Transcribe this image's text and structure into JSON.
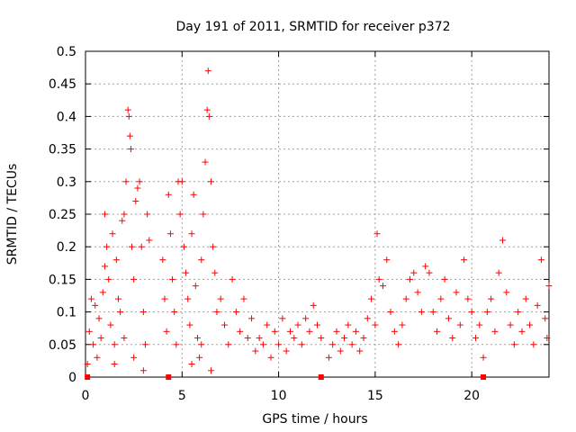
{
  "chart_data": {
    "type": "scatter",
    "title": "Day 191 of 2011, SRMTID for receiver p372",
    "xlabel": "GPS time / hours",
    "ylabel": "SRMTID / TECUs",
    "xlim": [
      0,
      24
    ],
    "ylim": [
      0,
      0.5
    ],
    "xticks": [
      0,
      5,
      10,
      15,
      20
    ],
    "yticks": [
      0,
      0.05,
      0.1,
      0.15,
      0.2,
      0.25,
      0.3,
      0.35,
      0.4,
      0.45,
      0.5
    ],
    "grid": true,
    "marker": "plus",
    "color": "#ff0000",
    "series": [
      {
        "values": [
          [
            0.1,
            0.02
          ],
          [
            0.2,
            0.07
          ],
          [
            0.3,
            0.12
          ],
          [
            0.4,
            0.05
          ],
          [
            0.5,
            0.11
          ],
          [
            0.6,
            0.03
          ],
          [
            0.7,
            0.09
          ],
          [
            0.8,
            0.06
          ],
          [
            0.9,
            0.13
          ],
          [
            1.0,
            0.17
          ],
          [
            1.0,
            0.25
          ],
          [
            1.1,
            0.2
          ],
          [
            1.2,
            0.15
          ],
          [
            1.3,
            0.08
          ],
          [
            1.4,
            0.22
          ],
          [
            1.5,
            0.05
          ],
          [
            1.6,
            0.18
          ],
          [
            1.7,
            0.12
          ],
          [
            1.8,
            0.1
          ],
          [
            1.9,
            0.24
          ],
          [
            2.0,
            0.25
          ],
          [
            2.1,
            0.3
          ],
          [
            2.2,
            0.41
          ],
          [
            2.25,
            0.4
          ],
          [
            2.3,
            0.37
          ],
          [
            2.35,
            0.35
          ],
          [
            2.4,
            0.2
          ],
          [
            2.5,
            0.15
          ],
          [
            2.6,
            0.27
          ],
          [
            2.7,
            0.29
          ],
          [
            2.8,
            0.3
          ],
          [
            2.9,
            0.2
          ],
          [
            3.0,
            0.1
          ],
          [
            3.1,
            0.05
          ],
          [
            3.2,
            0.25
          ],
          [
            3.3,
            0.21
          ],
          [
            1.5,
            0.02
          ],
          [
            2.0,
            0.06
          ],
          [
            2.5,
            0.03
          ],
          [
            3.0,
            0.01
          ],
          [
            4.0,
            0.18
          ],
          [
            4.1,
            0.12
          ],
          [
            4.2,
            0.07
          ],
          [
            4.3,
            0.28
          ],
          [
            4.4,
            0.22
          ],
          [
            4.5,
            0.15
          ],
          [
            4.6,
            0.1
          ],
          [
            4.7,
            0.05
          ],
          [
            4.8,
            0.3
          ],
          [
            4.9,
            0.25
          ],
          [
            5.0,
            0.3
          ],
          [
            5.1,
            0.2
          ],
          [
            5.2,
            0.16
          ],
          [
            5.3,
            0.12
          ],
          [
            5.4,
            0.08
          ],
          [
            5.5,
            0.22
          ],
          [
            5.6,
            0.28
          ],
          [
            5.7,
            0.14
          ],
          [
            5.8,
            0.06
          ],
          [
            5.9,
            0.03
          ],
          [
            6.0,
            0.18
          ],
          [
            6.1,
            0.25
          ],
          [
            6.2,
            0.33
          ],
          [
            6.3,
            0.41
          ],
          [
            6.35,
            0.47
          ],
          [
            6.4,
            0.4
          ],
          [
            6.5,
            0.3
          ],
          [
            6.6,
            0.2
          ],
          [
            6.7,
            0.16
          ],
          [
            6.8,
            0.1
          ],
          [
            5.5,
            0.02
          ],
          [
            6.0,
            0.05
          ],
          [
            6.5,
            0.01
          ],
          [
            7.0,
            0.12
          ],
          [
            7.2,
            0.08
          ],
          [
            7.4,
            0.05
          ],
          [
            7.6,
            0.15
          ],
          [
            7.8,
            0.1
          ],
          [
            8.0,
            0.07
          ],
          [
            8.2,
            0.12
          ],
          [
            8.4,
            0.06
          ],
          [
            8.6,
            0.09
          ],
          [
            8.8,
            0.04
          ],
          [
            9.0,
            0.06
          ],
          [
            9.2,
            0.05
          ],
          [
            9.4,
            0.08
          ],
          [
            9.6,
            0.03
          ],
          [
            9.8,
            0.07
          ],
          [
            10.0,
            0.05
          ],
          [
            10.2,
            0.09
          ],
          [
            10.4,
            0.04
          ],
          [
            10.6,
            0.07
          ],
          [
            10.8,
            0.06
          ],
          [
            11.0,
            0.08
          ],
          [
            11.2,
            0.05
          ],
          [
            11.4,
            0.09
          ],
          [
            11.6,
            0.07
          ],
          [
            11.8,
            0.11
          ],
          [
            12.0,
            0.08
          ],
          [
            12.2,
            0.06
          ],
          [
            12.6,
            0.03
          ],
          [
            12.8,
            0.05
          ],
          [
            13.0,
            0.07
          ],
          [
            13.2,
            0.04
          ],
          [
            13.4,
            0.06
          ],
          [
            13.6,
            0.08
          ],
          [
            13.8,
            0.05
          ],
          [
            14.0,
            0.07
          ],
          [
            14.2,
            0.04
          ],
          [
            14.4,
            0.06
          ],
          [
            14.6,
            0.09
          ],
          [
            14.8,
            0.12
          ],
          [
            15.0,
            0.08
          ],
          [
            15.1,
            0.22
          ],
          [
            15.2,
            0.15
          ],
          [
            15.4,
            0.14
          ],
          [
            15.6,
            0.18
          ],
          [
            15.8,
            0.1
          ],
          [
            16.0,
            0.07
          ],
          [
            16.2,
            0.05
          ],
          [
            16.4,
            0.08
          ],
          [
            16.6,
            0.12
          ],
          [
            16.8,
            0.15
          ],
          [
            17.0,
            0.16
          ],
          [
            17.2,
            0.13
          ],
          [
            17.4,
            0.1
          ],
          [
            17.6,
            0.17
          ],
          [
            17.8,
            0.16
          ],
          [
            18.0,
            0.1
          ],
          [
            18.2,
            0.07
          ],
          [
            18.4,
            0.12
          ],
          [
            18.6,
            0.15
          ],
          [
            18.8,
            0.09
          ],
          [
            19.0,
            0.06
          ],
          [
            19.2,
            0.13
          ],
          [
            19.4,
            0.08
          ],
          [
            19.6,
            0.18
          ],
          [
            19.8,
            0.12
          ],
          [
            20.0,
            0.1
          ],
          [
            20.2,
            0.06
          ],
          [
            20.4,
            0.08
          ],
          [
            20.6,
            0.03
          ],
          [
            20.8,
            0.1
          ],
          [
            21.0,
            0.12
          ],
          [
            21.2,
            0.07
          ],
          [
            21.4,
            0.16
          ],
          [
            21.6,
            0.21
          ],
          [
            21.8,
            0.13
          ],
          [
            22.0,
            0.08
          ],
          [
            22.2,
            0.05
          ],
          [
            22.4,
            0.1
          ],
          [
            22.6,
            0.07
          ],
          [
            22.8,
            0.12
          ],
          [
            23.0,
            0.08
          ],
          [
            23.2,
            0.05
          ],
          [
            23.4,
            0.11
          ],
          [
            23.6,
            0.18
          ],
          [
            23.8,
            0.09
          ],
          [
            24.0,
            0.14
          ],
          [
            23.9,
            0.06
          ]
        ]
      }
    ],
    "axis_markers": [
      0.1,
      4.3,
      12.2,
      20.6
    ]
  }
}
